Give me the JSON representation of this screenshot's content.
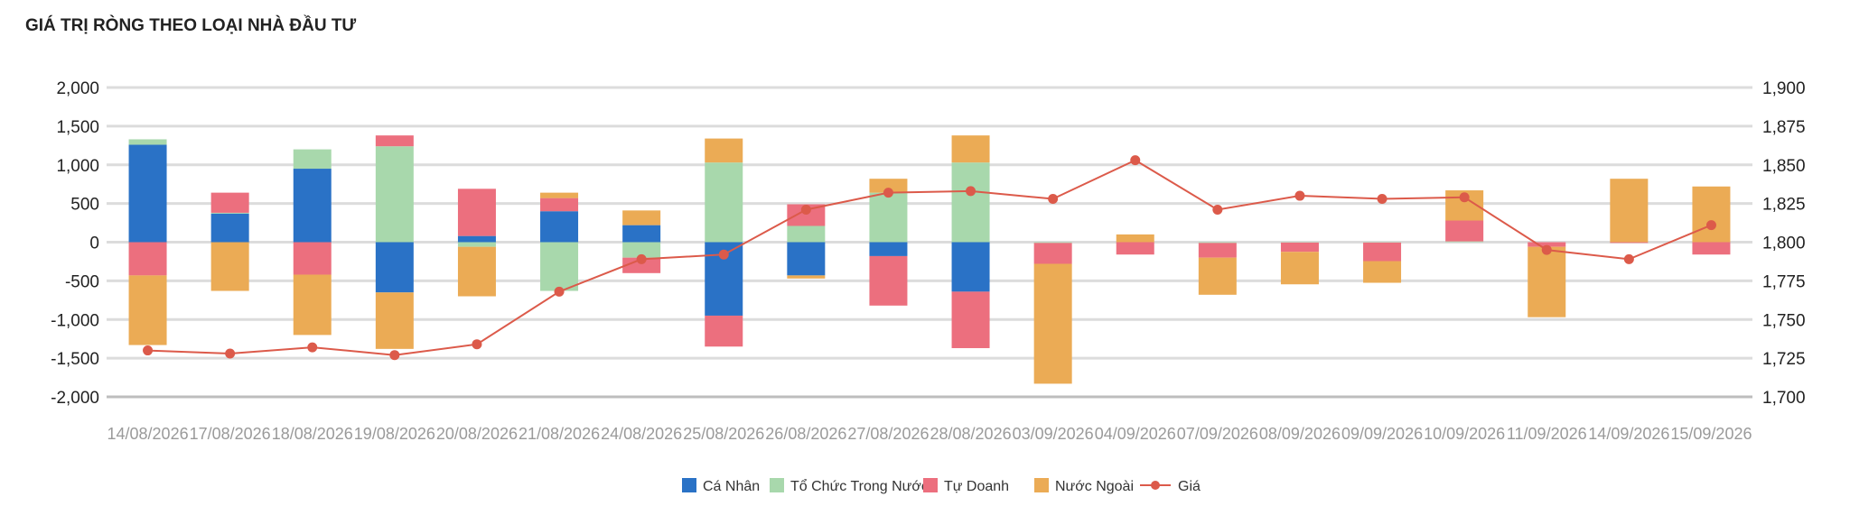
{
  "chart_data": {
    "type": "bar",
    "title": "GIÁ TRỊ RÒNG THEO LOẠI NHÀ ĐẦU TƯ",
    "stacked": true,
    "categories": [
      "14/08/2026",
      "17/08/2026",
      "18/08/2026",
      "19/08/2026",
      "20/08/2026",
      "21/08/2026",
      "24/08/2026",
      "25/08/2026",
      "26/08/2026",
      "27/08/2026",
      "28/08/2026",
      "03/09/2026",
      "04/09/2026",
      "07/09/2026",
      "08/09/2026",
      "09/09/2026",
      "10/09/2026",
      "11/09/2026",
      "14/09/2026",
      "15/09/2026"
    ],
    "y_left": {
      "min": -2000,
      "max": 2000,
      "step": 500,
      "ticks": [
        "-2,000",
        "-1,500",
        "-1,000",
        "-500",
        "0",
        "500",
        "1,000",
        "1,500",
        "2,000"
      ]
    },
    "y_right": {
      "min": 1700,
      "max": 1900,
      "step": 25,
      "ticks": [
        "1,700",
        "1,725",
        "1,750",
        "1,775",
        "1,800",
        "1,825",
        "1,850",
        "1,875",
        "1,900"
      ]
    },
    "grid": true,
    "legend_position": "bottom",
    "series": [
      {
        "name": "Cá Nhân",
        "kind": "bar",
        "color": "#2a72c6",
        "values": [
          1260,
          370,
          950,
          -650,
          80,
          400,
          220,
          -950,
          -430,
          -180,
          -640,
          0,
          0,
          0,
          0,
          0,
          0,
          0,
          0,
          0
        ]
      },
      {
        "name": "Tổ Chức Trong Nước",
        "kind": "bar",
        "color": "#a8d8ac",
        "values": [
          70,
          10,
          250,
          1240,
          -60,
          -630,
          -200,
          1030,
          210,
          640,
          1030,
          -10,
          0,
          -10,
          -5,
          -5,
          10,
          0,
          0,
          0
        ]
      },
      {
        "name": "Tự Doanh",
        "kind": "bar",
        "color": "#ec6f7e",
        "values": [
          -430,
          260,
          -420,
          140,
          610,
          170,
          -200,
          -400,
          280,
          -640,
          -730,
          -270,
          -160,
          -190,
          -120,
          -240,
          270,
          -60,
          -10,
          -160
        ]
      },
      {
        "name": "Nước Ngoài",
        "kind": "bar",
        "color": "#ebab55",
        "values": [
          -900,
          -630,
          -780,
          -730,
          -640,
          70,
          190,
          310,
          -40,
          180,
          350,
          -1550,
          100,
          -480,
          -420,
          -280,
          390,
          -910,
          820,
          720
        ]
      },
      {
        "name": "Giá",
        "kind": "line",
        "axis": "right",
        "color": "#dc5a4a",
        "values": [
          1730,
          1728,
          1732,
          1727,
          1734,
          1768,
          1789,
          1792,
          1821,
          1832,
          1833,
          1828,
          1853,
          1821,
          1830,
          1828,
          1829,
          1795,
          1789,
          1811
        ]
      }
    ]
  }
}
